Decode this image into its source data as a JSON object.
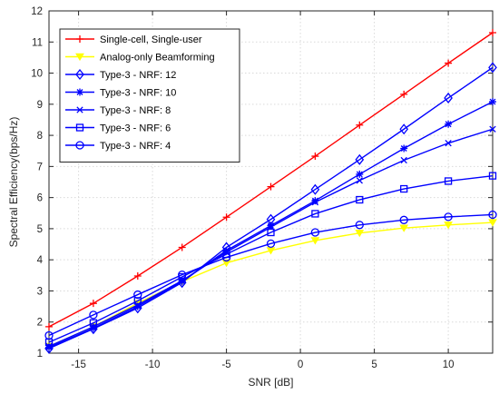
{
  "chart_data": {
    "type": "line",
    "title": "",
    "xlabel": "SNR [dB]",
    "ylabel": "Spectral Efficiency(bps/Hz)",
    "xlim": [
      -17,
      13
    ],
    "ylim": [
      1,
      12
    ],
    "xticks": [
      -15,
      -10,
      -5,
      0,
      5,
      10
    ],
    "yticks": [
      1,
      2,
      3,
      4,
      5,
      6,
      7,
      8,
      9,
      10,
      11,
      12
    ],
    "grid": true,
    "legend_position": "top-left",
    "x": [
      -17,
      -14,
      -11,
      -8,
      -5,
      -2,
      1,
      4,
      7,
      10,
      13
    ],
    "series": [
      {
        "name": "Single-cell, Single-user",
        "color": "#ff0000",
        "marker": "plus",
        "values": [
          1.85,
          2.6,
          3.48,
          4.4,
          5.37,
          6.35,
          7.33,
          8.33,
          9.32,
          10.32,
          11.3
        ]
      },
      {
        "name": "Analog-only Beamforming",
        "color": "#ffff00",
        "marker": "triangle-down",
        "values": [
          1.22,
          1.85,
          2.6,
          3.3,
          3.9,
          4.3,
          4.62,
          4.86,
          5.02,
          5.12,
          5.2
        ]
      },
      {
        "name": "Type-3 - NRF: 12",
        "color": "#0000ff",
        "marker": "diamond",
        "values": [
          1.15,
          1.78,
          2.45,
          3.27,
          4.4,
          5.3,
          6.26,
          7.22,
          8.2,
          9.2,
          10.18
        ]
      },
      {
        "name": "Type-3 - NRF: 10",
        "color": "#0000ff",
        "marker": "asterisk",
        "values": [
          1.18,
          1.8,
          2.5,
          3.3,
          4.3,
          5.1,
          5.9,
          6.75,
          7.58,
          8.36,
          9.08
        ]
      },
      {
        "name": "Type-3 - NRF: 8",
        "color": "#0000ff",
        "marker": "x",
        "values": [
          1.22,
          1.85,
          2.55,
          3.33,
          4.25,
          5.05,
          5.85,
          6.55,
          7.2,
          7.75,
          8.2
        ]
      },
      {
        "name": "Type-3 - NRF: 6",
        "color": "#0000ff",
        "marker": "square",
        "values": [
          1.35,
          1.97,
          2.68,
          3.45,
          4.18,
          4.88,
          5.48,
          5.93,
          6.28,
          6.53,
          6.7
        ]
      },
      {
        "name": "Type-3 - NRF: 4",
        "color": "#0000ff",
        "marker": "circle",
        "values": [
          1.57,
          2.23,
          2.88,
          3.52,
          4.08,
          4.52,
          4.88,
          5.12,
          5.28,
          5.38,
          5.45
        ]
      }
    ]
  }
}
